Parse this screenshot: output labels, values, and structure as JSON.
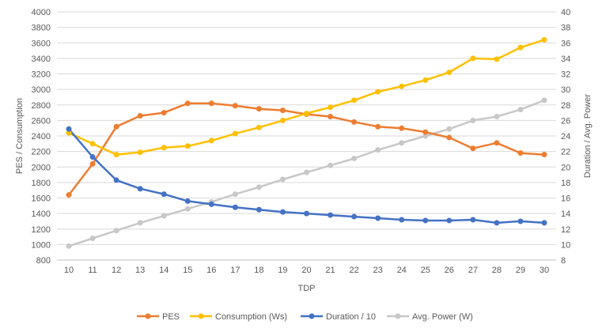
{
  "chart_data": {
    "type": "line",
    "title": "",
    "xlabel": "TDP",
    "ylabel_left": "PES / Consumption",
    "ylabel_right": "Duration / Avg. Power",
    "x": [
      10,
      11,
      12,
      13,
      14,
      15,
      16,
      17,
      18,
      19,
      20,
      21,
      22,
      23,
      24,
      25,
      26,
      27,
      28,
      29,
      30
    ],
    "ylim_left": [
      800,
      4000
    ],
    "yticks_left": [
      800,
      1000,
      1200,
      1400,
      1600,
      1800,
      2000,
      2200,
      2400,
      2600,
      2800,
      3000,
      3200,
      3400,
      3600,
      3800,
      4000
    ],
    "ylim_right": [
      8,
      40
    ],
    "yticks_right": [
      8,
      10,
      12,
      14,
      16,
      18,
      20,
      22,
      24,
      26,
      28,
      30,
      32,
      34,
      36,
      38,
      40
    ],
    "grid": true,
    "legend_position": "bottom",
    "series": [
      {
        "name": "PES",
        "axis": "left",
        "color": "#ED7D31",
        "values": [
          1640,
          2040,
          2520,
          2660,
          2700,
          2820,
          2820,
          2790,
          2750,
          2730,
          2680,
          2650,
          2580,
          2520,
          2500,
          2450,
          2380,
          2240,
          2310,
          2180,
          2160
        ]
      },
      {
        "name": "Consumption (Ws)",
        "axis": "left",
        "color": "#FFC000",
        "values": [
          2440,
          2300,
          2160,
          2190,
          2250,
          2270,
          2340,
          2430,
          2510,
          2600,
          2690,
          2770,
          2860,
          2970,
          3040,
          3120,
          3220,
          3400,
          3390,
          3540,
          3640
        ]
      },
      {
        "name": "Duration / 10",
        "axis": "right",
        "color": "#4472C4",
        "values": [
          24.9,
          21.3,
          18.3,
          17.2,
          16.5,
          15.6,
          15.2,
          14.8,
          14.5,
          14.2,
          14.0,
          13.8,
          13.6,
          13.4,
          13.2,
          13.1,
          13.1,
          13.2,
          12.8,
          13.0,
          12.8
        ]
      },
      {
        "name": "Avg. Power (W)",
        "axis": "right",
        "color": "#C8C8C8",
        "values": [
          9.8,
          10.8,
          11.8,
          12.8,
          13.7,
          14.6,
          15.5,
          16.5,
          17.4,
          18.4,
          19.3,
          20.2,
          21.1,
          22.2,
          23.1,
          24.0,
          24.9,
          26.0,
          26.5,
          27.4,
          28.6
        ]
      }
    ]
  }
}
